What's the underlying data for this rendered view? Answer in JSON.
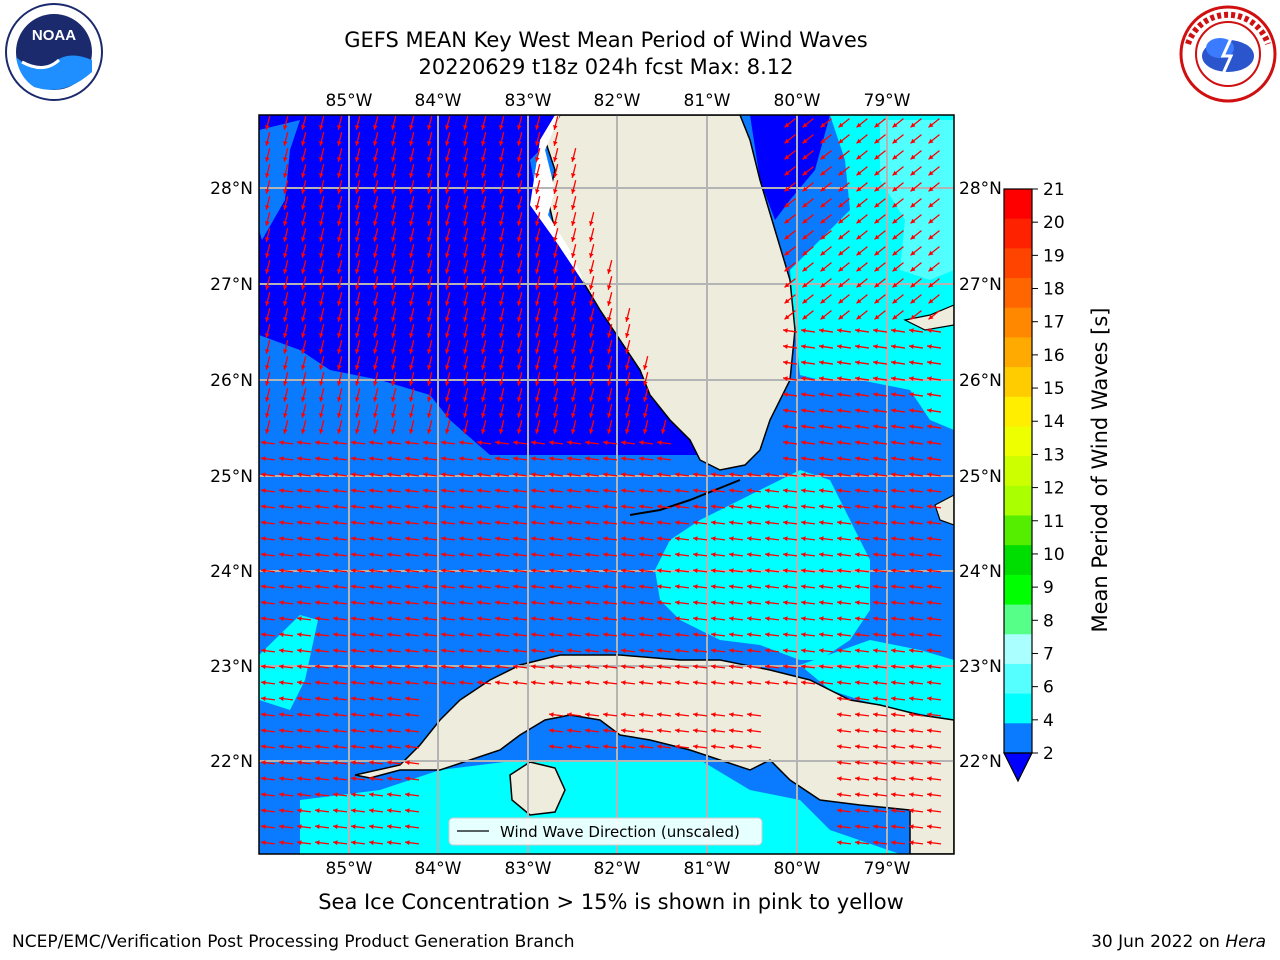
{
  "title": {
    "line1": "GEFS MEAN Key West Mean Period of Wind Waves",
    "line2": "20220629 t18z 024h fcst   Max: 8.12"
  },
  "map": {
    "lon_labels": [
      "85°W",
      "84°W",
      "83°W",
      "82°W",
      "81°W",
      "80°W",
      "79°W"
    ],
    "lat_labels": [
      "28°N",
      "27°N",
      "26°N",
      "25°N",
      "24°N",
      "23°N",
      "22°N"
    ],
    "legend_label": "Wind Wave Direction (unscaled)",
    "colors": {
      "land": "#eeecdc",
      "ocean_dark": "#0000ff",
      "ocean_mid": "#0a7bff",
      "ocean_light": "#00ffff",
      "ocean_pale": "#52ffff",
      "arrow": "#ff0000",
      "grid": "#b4b4b4"
    }
  },
  "colorbar": {
    "label": "Mean Period of Wind Waves [s]",
    "ticks": [
      "21",
      "20",
      "19",
      "18",
      "17",
      "16",
      "15",
      "14",
      "13",
      "12",
      "11",
      "10",
      "9",
      "8",
      "7",
      "6",
      "4",
      "2"
    ],
    "colors": [
      "#ff0000",
      "#ff2200",
      "#ff4400",
      "#ff6600",
      "#ff8800",
      "#ffaa00",
      "#ffcc00",
      "#ffee00",
      "#eeff00",
      "#ccff00",
      "#aaff00",
      "#55ee00",
      "#00dd00",
      "#00ff00",
      "#55ff88",
      "#aaffff",
      "#55ffff",
      "#00ffff",
      "#0a7bff"
    ]
  },
  "logos": {
    "noaa_text": "NOAA"
  },
  "subtitle": "Sea Ice Concentration > 15% is shown in pink to yellow",
  "footer": {
    "left": "NCEP/EMC/Verification Post Processing Product Generation Branch",
    "right_date": "30 Jun 2022 on ",
    "right_host": "Hera"
  }
}
